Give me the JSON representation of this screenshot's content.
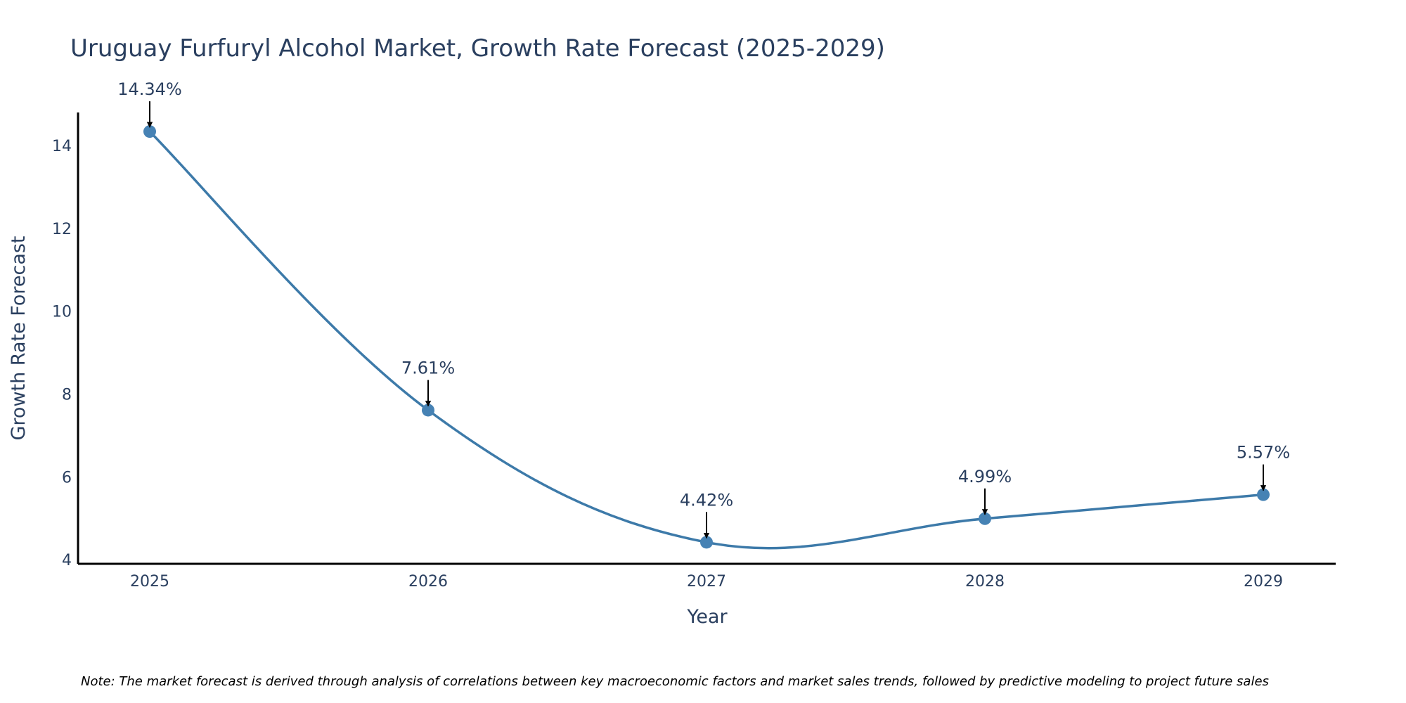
{
  "chart_data": {
    "type": "line",
    "title": "Uruguay Furfuryl Alcohol Market, Growth Rate Forecast (2025-2029)",
    "xlabel": "Year",
    "ylabel": "Growth Rate Forecast",
    "categories": [
      "2025",
      "2026",
      "2027",
      "2028",
      "2029"
    ],
    "values": [
      14.34,
      7.61,
      4.42,
      4.99,
      5.57
    ],
    "labels": [
      "14.34%",
      "7.61%",
      "4.42%",
      "4.99%",
      "5.57%"
    ],
    "yticks": [
      4,
      6,
      8,
      10,
      12,
      14
    ],
    "ylim": [
      3.9,
      14.8
    ],
    "line_shape": "spline",
    "grid": false,
    "line_color": "#3d7aa9",
    "marker_color": "#4682b4",
    "note": "Note: The market forecast is derived through analysis of correlations between key macroeconomic factors and market sales trends, followed by predictive modeling to project future sales"
  }
}
